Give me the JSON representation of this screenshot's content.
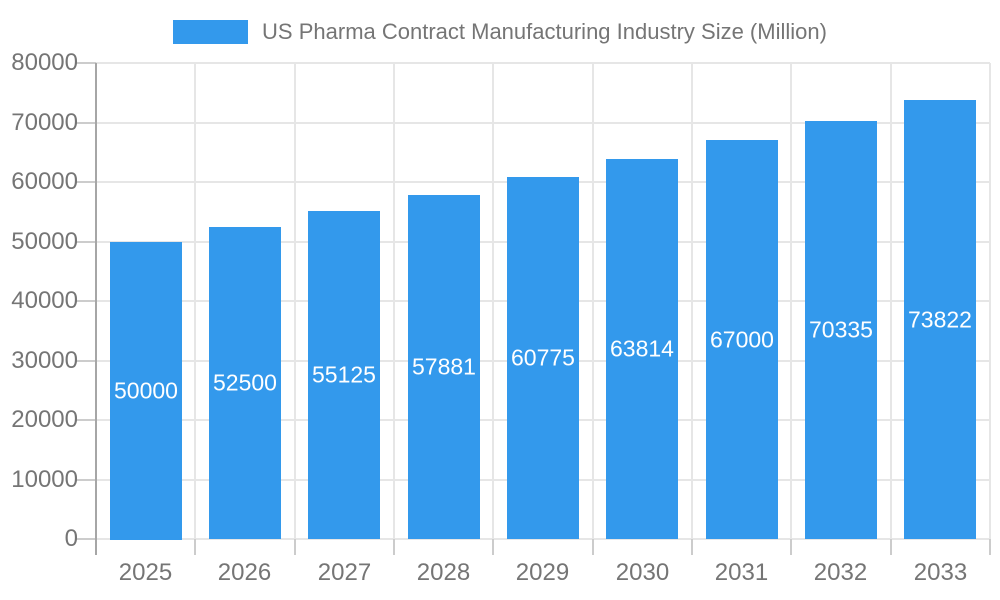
{
  "chart_data": {
    "type": "bar",
    "title": "US Pharma Contract Manufacturing Industry Size (Million)",
    "categories": [
      "2025",
      "2026",
      "2027",
      "2028",
      "2029",
      "2030",
      "2031",
      "2032",
      "2033"
    ],
    "values": [
      50000,
      52500,
      55125,
      57881,
      60775,
      63814,
      67000,
      70335,
      73822
    ],
    "value_labels": [
      "50000",
      "52500",
      "55125",
      "57881",
      "60775",
      "63814",
      "67000",
      "70335",
      "73822"
    ],
    "xlabel": "",
    "ylabel": "",
    "ylim": [
      0,
      80000
    ],
    "ytick_step": 10000,
    "ytick_labels": [
      "0",
      "10000",
      "20000",
      "30000",
      "40000",
      "50000",
      "60000",
      "70000",
      "80000"
    ],
    "grid": true,
    "legend_position": "top"
  },
  "colors": {
    "bar": "#3399EC",
    "grid": "#e6e6e6",
    "axis_line": "#a6a6a6",
    "tick": "#cccccc",
    "axis_text": "#757575",
    "legend_text": "#757575",
    "bar_label_text": "#ffffff",
    "background": "#ffffff"
  }
}
